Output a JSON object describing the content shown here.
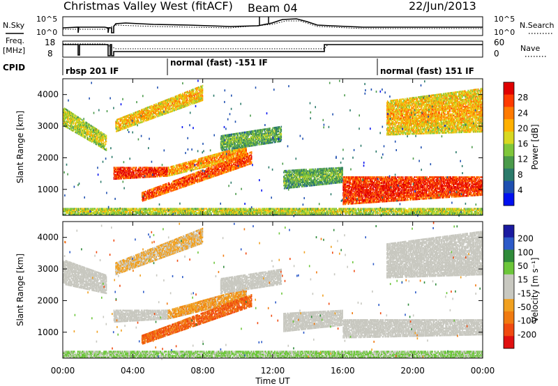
{
  "header": {
    "title": "Christmas Valley West (fitACF)",
    "beam": "Beam 04",
    "date": "22/Jun/2013"
  },
  "top_panels": {
    "nsky_label": "N.Sky",
    "nsearch_label": "N.Search",
    "noise_tick_high": "10^5",
    "noise_tick_low": "10^0",
    "freq_label_line1": "Freq.",
    "freq_label_line2": "[MHz]",
    "freq_ticks": [
      "18",
      "8"
    ],
    "nave_label": "Nave",
    "nave_ticks": [
      "60",
      "0"
    ],
    "cpid_label": "CPID",
    "modes": [
      "rbsp 201 IF",
      "normal (fast) -151 IF",
      "normal (fast) 151 IF"
    ]
  },
  "axes": {
    "ylabel": "Slant Range [km]",
    "xlabel": "Time UT",
    "y_ticks": [
      "1000",
      "2000",
      "3000",
      "4000"
    ],
    "x_ticks": [
      "00:00",
      "04:00",
      "08:00",
      "12:00",
      "16:00",
      "20:00",
      "00:00"
    ]
  },
  "colors": {
    "power": [
      "#0010f0",
      "#1e4fb0",
      "#2b7a6a",
      "#4a9a4a",
      "#7fc63a",
      "#d8d820",
      "#ffb000",
      "#ff7a00",
      "#ff3a00",
      "#e00000"
    ],
    "velocity": [
      "#1a1aa0",
      "#2c5ac8",
      "#2f8a3a",
      "#6cc63a",
      "#c8c8c0",
      "#c8c8c0",
      "#f0a020",
      "#f07a10",
      "#f04a10",
      "#e01010"
    ]
  },
  "chart_data": [
    {
      "type": "heatmap",
      "title": "",
      "xlabel": "",
      "ylabel": "Slant Range [km]",
      "x_range_hours": [
        0,
        24
      ],
      "ylim": [
        180,
        4500
      ],
      "colorbar": {
        "label": "Power [dB]",
        "ticks": [
          "4",
          "8",
          "12",
          "16",
          "20",
          "24",
          "28"
        ],
        "range": [
          0,
          32
        ]
      },
      "features": [
        {
          "x": [
            0.0,
            2.5
          ],
          "range_start": [
            3000,
            2200
          ],
          "range_end": [
            3600,
            2700
          ],
          "value": 14
        },
        {
          "x": [
            2.9,
            6.0
          ],
          "range_start": [
            1300,
            1400
          ],
          "range_end": [
            1700,
            1700
          ],
          "value": 26
        },
        {
          "x": [
            6.0,
            10.5
          ],
          "range_start": [
            1400,
            2000
          ],
          "range_end": [
            1700,
            2400
          ],
          "value": 20
        },
        {
          "x": [
            4.5,
            10.8
          ],
          "range_start": [
            600,
            1800
          ],
          "range_end": [
            900,
            2200
          ],
          "value": 24
        },
        {
          "x": [
            3.0,
            8.0
          ],
          "range_start": [
            2800,
            3800
          ],
          "range_end": [
            3200,
            4300
          ],
          "value": 18
        },
        {
          "x": [
            9.0,
            12.5
          ],
          "range_start": [
            2200,
            2500
          ],
          "range_end": [
            2700,
            3000
          ],
          "value": 10
        },
        {
          "x": [
            12.6,
            16.0
          ],
          "range_start": [
            1000,
            1200
          ],
          "range_end": [
            1600,
            1700
          ],
          "value": 10
        },
        {
          "x": [
            16.0,
            24.0
          ],
          "range_start": [
            500,
            800
          ],
          "range_end": [
            1400,
            1400
          ],
          "value": 26
        },
        {
          "x": [
            18.5,
            24.0
          ],
          "range_start": [
            2700,
            2800
          ],
          "range_end": [
            3800,
            4200
          ],
          "value": 18
        },
        {
          "x": [
            0.0,
            24.0
          ],
          "range_start": [
            180,
            180
          ],
          "range_end": [
            400,
            400
          ],
          "value": 14
        }
      ]
    },
    {
      "type": "heatmap",
      "title": "",
      "xlabel": "Time UT",
      "ylabel": "Slant Range [km]",
      "x_range_hours": [
        0,
        24
      ],
      "ylim": [
        180,
        4500
      ],
      "colorbar": {
        "label": "Velocity [m s⁻¹]",
        "ticks": [
          "200",
          "100",
          "50",
          "15",
          "-15",
          "-50",
          "-100",
          "-200"
        ],
        "range": [
          -250,
          250
        ]
      },
      "features": [
        {
          "x": [
            0.0,
            2.5
          ],
          "range_start": [
            2500,
            2200
          ],
          "range_end": [
            3300,
            2800
          ],
          "value": 0
        },
        {
          "x": [
            2.9,
            6.0
          ],
          "range_start": [
            1300,
            1400
          ],
          "range_end": [
            1700,
            1700
          ],
          "value": 0
        },
        {
          "x": [
            6.0,
            10.5
          ],
          "range_start": [
            1400,
            2000
          ],
          "range_end": [
            1700,
            2400
          ],
          "value": -80
        },
        {
          "x": [
            4.5,
            10.8
          ],
          "range_start": [
            600,
            1800
          ],
          "range_end": [
            900,
            2200
          ],
          "value": -150
        },
        {
          "x": [
            3.0,
            8.0
          ],
          "range_start": [
            2800,
            3800
          ],
          "range_end": [
            3200,
            4300
          ],
          "value": -60
        },
        {
          "x": [
            9.0,
            12.5
          ],
          "range_start": [
            2200,
            2500
          ],
          "range_end": [
            2700,
            3000
          ],
          "value": 0
        },
        {
          "x": [
            12.6,
            16.0
          ],
          "range_start": [
            1000,
            1200
          ],
          "range_end": [
            1600,
            1700
          ],
          "value": 0
        },
        {
          "x": [
            16.0,
            24.0
          ],
          "range_start": [
            800,
            900
          ],
          "range_end": [
            1400,
            1400
          ],
          "value": 0
        },
        {
          "x": [
            18.5,
            24.0
          ],
          "range_start": [
            2700,
            2800
          ],
          "range_end": [
            3800,
            4200
          ],
          "value": 0
        },
        {
          "x": [
            0.0,
            24.0
          ],
          "range_start": [
            180,
            180
          ],
          "range_end": [
            400,
            400
          ],
          "value": 60
        }
      ]
    }
  ]
}
